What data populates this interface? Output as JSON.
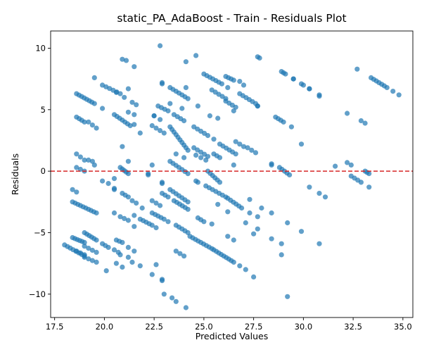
{
  "chart_data": {
    "type": "scatter",
    "title": "static_PA_AdaBoost - Train - Residuals Plot",
    "xlabel": "Predicted Values",
    "ylabel": "Residuals",
    "xlim": [
      17.3,
      35.5
    ],
    "ylim": [
      -11.9,
      11.4
    ],
    "xticks": [
      "17.5",
      "20.0",
      "22.5",
      "25.0",
      "27.5",
      "30.0",
      "32.5",
      "35.0"
    ],
    "yticks": [
      "−10",
      "−5",
      "0",
      "5",
      "10"
    ],
    "grid": false,
    "legend": "none",
    "marker_color": "#1f77b4",
    "marker_alpha": 0.7,
    "reference_line": {
      "y": 0,
      "color": "#d62728",
      "style": "dashed"
    },
    "segments": [
      {
        "x0": 18.6,
        "y0": 6.3,
        "x1": 19.5,
        "y1": 5.5,
        "n": 8
      },
      {
        "x0": 18.6,
        "y0": 4.4,
        "x1": 19.0,
        "y1": 4.0,
        "n": 4
      },
      {
        "x0": 18.6,
        "y0": 1.4,
        "x1": 19.0,
        "y1": 0.9,
        "n": 3
      },
      {
        "x0": 18.6,
        "y0": 0.3,
        "x1": 19.0,
        "y1": 0.0,
        "n": 3
      },
      {
        "x0": 18.4,
        "y0": -1.5,
        "x1": 18.6,
        "y1": -1.7,
        "n": 2
      },
      {
        "x0": 18.4,
        "y0": -2.5,
        "x1": 19.6,
        "y1": -3.4,
        "n": 10
      },
      {
        "x0": 18.0,
        "y0": -6.0,
        "x1": 19.0,
        "y1": -6.9,
        "n": 8
      },
      {
        "x0": 18.4,
        "y0": -5.4,
        "x1": 19.0,
        "y1": -5.8,
        "n": 6
      },
      {
        "x0": 18.6,
        "y0": -6.5,
        "x1": 19.0,
        "y1": -6.8,
        "n": 3
      },
      {
        "x0": 19.0,
        "y0": -5.0,
        "x1": 19.6,
        "y1": -5.6,
        "n": 6
      },
      {
        "x0": 19.0,
        "y0": -6.1,
        "x1": 19.6,
        "y1": -6.6,
        "n": 4
      },
      {
        "x0": 19.0,
        "y0": -7.0,
        "x1": 19.6,
        "y1": -7.4,
        "n": 4
      },
      {
        "x0": 19.2,
        "y0": 0.9,
        "x1": 19.4,
        "y1": 0.8,
        "n": 2
      },
      {
        "x0": 19.2,
        "y0": 4.0,
        "x1": 19.6,
        "y1": 3.5,
        "n": 3
      },
      {
        "x0": 19.5,
        "y0": 7.6,
        "x1": 19.5,
        "y1": 7.6,
        "n": 1
      },
      {
        "x0": 19.9,
        "y0": 7.0,
        "x1": 20.8,
        "y1": 6.3,
        "n": 6
      },
      {
        "x0": 19.9,
        "y0": 5.1,
        "x1": 19.9,
        "y1": 5.1,
        "n": 1
      },
      {
        "x0": 20.5,
        "y0": 4.6,
        "x1": 21.3,
        "y1": 3.7,
        "n": 7
      },
      {
        "x0": 19.9,
        "y0": -0.8,
        "x1": 20.2,
        "y1": -1.0,
        "n": 2
      },
      {
        "x0": 19.5,
        "y0": 0.5,
        "x1": 19.5,
        "y1": 0.5,
        "n": 1
      },
      {
        "x0": 20.5,
        "y0": -0.6,
        "x1": 20.5,
        "y1": -0.6,
        "n": 1
      },
      {
        "x0": 20.5,
        "y0": -1.4,
        "x1": 20.5,
        "y1": -1.5,
        "n": 2
      },
      {
        "x0": 20.8,
        "y0": 0.3,
        "x1": 21.2,
        "y1": -0.2,
        "n": 5
      },
      {
        "x0": 20.9,
        "y0": -1.8,
        "x1": 21.2,
        "y1": -2.1,
        "n": 3
      },
      {
        "x0": 20.5,
        "y0": -3.4,
        "x1": 20.5,
        "y1": -3.4,
        "n": 1
      },
      {
        "x0": 20.8,
        "y0": -3.7,
        "x1": 21.2,
        "y1": -4.0,
        "n": 3
      },
      {
        "x0": 19.9,
        "y0": -5.9,
        "x1": 20.2,
        "y1": -6.2,
        "n": 3
      },
      {
        "x0": 20.5,
        "y0": -6.4,
        "x1": 20.7,
        "y1": -6.6,
        "n": 2
      },
      {
        "x0": 20.6,
        "y0": -5.6,
        "x1": 20.9,
        "y1": -5.8,
        "n": 3
      },
      {
        "x0": 20.6,
        "y0": -7.5,
        "x1": 20.9,
        "y1": -7.8,
        "n": 2
      },
      {
        "x0": 20.8,
        "y0": -6.8,
        "x1": 21.2,
        "y1": -7.0,
        "n": 2
      },
      {
        "x0": 20.1,
        "y0": -8.1,
        "x1": 20.1,
        "y1": -8.1,
        "n": 1
      },
      {
        "x0": 20.9,
        "y0": 9.1,
        "x1": 21.1,
        "y1": 9.0,
        "n": 2
      },
      {
        "x0": 21.2,
        "y0": 6.7,
        "x1": 21.2,
        "y1": 6.7,
        "n": 1
      },
      {
        "x0": 20.6,
        "y0": 6.4,
        "x1": 20.6,
        "y1": 6.4,
        "n": 1
      },
      {
        "x0": 21.0,
        "y0": 6.0,
        "x1": 21.0,
        "y1": 6.0,
        "n": 1
      },
      {
        "x0": 21.4,
        "y0": 5.6,
        "x1": 21.6,
        "y1": 5.4,
        "n": 2
      },
      {
        "x0": 21.5,
        "y0": 8.5,
        "x1": 21.5,
        "y1": 8.5,
        "n": 1
      },
      {
        "x0": 21.2,
        "y0": 4.8,
        "x1": 21.5,
        "y1": 4.6,
        "n": 2
      },
      {
        "x0": 21.5,
        "y0": 3.8,
        "x1": 21.5,
        "y1": 3.8,
        "n": 1
      },
      {
        "x0": 20.9,
        "y0": 2.0,
        "x1": 20.9,
        "y1": 2.0,
        "n": 1
      },
      {
        "x0": 21.2,
        "y0": 0.8,
        "x1": 21.2,
        "y1": 0.8,
        "n": 1
      },
      {
        "x0": 21.4,
        "y0": -2.4,
        "x1": 21.6,
        "y1": -2.6,
        "n": 2
      },
      {
        "x0": 21.5,
        "y0": -3.6,
        "x1": 21.5,
        "y1": -3.6,
        "n": 1
      },
      {
        "x0": 21.5,
        "y0": -4.5,
        "x1": 21.5,
        "y1": -4.5,
        "n": 1
      },
      {
        "x0": 21.2,
        "y0": -6.2,
        "x1": 21.5,
        "y1": -6.5,
        "n": 2
      },
      {
        "x0": 21.4,
        "y0": -7.4,
        "x1": 21.8,
        "y1": -7.7,
        "n": 2
      },
      {
        "x0": 21.8,
        "y0": 3.1,
        "x1": 21.8,
        "y1": 3.1,
        "n": 1
      },
      {
        "x0": 21.8,
        "y0": -3.9,
        "x1": 22.4,
        "y1": -4.4,
        "n": 5
      },
      {
        "x0": 21.9,
        "y0": -3.0,
        "x1": 21.9,
        "y1": -3.0,
        "n": 1
      },
      {
        "x0": 22.2,
        "y0": -0.2,
        "x1": 22.2,
        "y1": -0.3,
        "n": 2
      },
      {
        "x0": 22.4,
        "y0": 0.5,
        "x1": 22.4,
        "y1": 0.5,
        "n": 1
      },
      {
        "x0": 22.4,
        "y0": -2.4,
        "x1": 22.8,
        "y1": -2.8,
        "n": 3
      },
      {
        "x0": 22.4,
        "y0": -3.4,
        "x1": 23.0,
        "y1": -3.9,
        "n": 5
      },
      {
        "x0": 22.5,
        "y0": 4.5,
        "x1": 22.5,
        "y1": 4.5,
        "n": 2
      },
      {
        "x0": 22.4,
        "y0": 3.7,
        "x1": 22.6,
        "y1": 3.5,
        "n": 2
      },
      {
        "x0": 22.7,
        "y0": 5.3,
        "x1": 23.2,
        "y1": 4.9,
        "n": 4
      },
      {
        "x0": 22.9,
        "y0": 7.2,
        "x1": 22.9,
        "y1": 7.1,
        "n": 2
      },
      {
        "x0": 22.8,
        "y0": 10.2,
        "x1": 22.8,
        "y1": 10.2,
        "n": 1
      },
      {
        "x0": 22.8,
        "y0": 4.2,
        "x1": 22.8,
        "y1": 4.2,
        "n": 1
      },
      {
        "x0": 22.8,
        "y0": 3.3,
        "x1": 23.0,
        "y1": 3.1,
        "n": 2
      },
      {
        "x0": 22.9,
        "y0": -0.9,
        "x1": 22.9,
        "y1": -1.0,
        "n": 2
      },
      {
        "x0": 22.9,
        "y0": -1.8,
        "x1": 23.2,
        "y1": -2.1,
        "n": 3
      },
      {
        "x0": 22.6,
        "y0": -4.6,
        "x1": 22.6,
        "y1": -4.6,
        "n": 1
      },
      {
        "x0": 22.6,
        "y0": -7.6,
        "x1": 22.6,
        "y1": -7.6,
        "n": 1
      },
      {
        "x0": 22.4,
        "y0": -8.4,
        "x1": 22.4,
        "y1": -8.4,
        "n": 1
      },
      {
        "x0": 22.9,
        "y0": -8.8,
        "x1": 22.9,
        "y1": -8.9,
        "n": 2
      },
      {
        "x0": 23.0,
        "y0": -10.0,
        "x1": 23.0,
        "y1": -10.0,
        "n": 1
      },
      {
        "x0": 23.4,
        "y0": -10.3,
        "x1": 23.6,
        "y1": -10.6,
        "n": 2
      },
      {
        "x0": 24.1,
        "y0": -11.1,
        "x1": 24.1,
        "y1": -11.1,
        "n": 1
      },
      {
        "x0": 23.3,
        "y0": 6.8,
        "x1": 24.2,
        "y1": 5.9,
        "n": 7
      },
      {
        "x0": 23.3,
        "y0": 5.5,
        "x1": 23.3,
        "y1": 5.5,
        "n": 1
      },
      {
        "x0": 23.5,
        "y0": 4.6,
        "x1": 24.0,
        "y1": 4.1,
        "n": 4
      },
      {
        "x0": 23.3,
        "y0": 3.6,
        "x1": 24.2,
        "y1": 1.7,
        "n": 10
      },
      {
        "x0": 23.3,
        "y0": 0.8,
        "x1": 24.2,
        "y1": -0.2,
        "n": 7
      },
      {
        "x0": 23.6,
        "y0": 1.4,
        "x1": 23.6,
        "y1": 1.4,
        "n": 1
      },
      {
        "x0": 23.9,
        "y0": 5.1,
        "x1": 23.9,
        "y1": 5.1,
        "n": 1
      },
      {
        "x0": 24.0,
        "y0": 1.1,
        "x1": 24.0,
        "y1": 1.1,
        "n": 1
      },
      {
        "x0": 23.3,
        "y0": -1.5,
        "x1": 24.2,
        "y1": -2.5,
        "n": 7
      },
      {
        "x0": 23.5,
        "y0": -2.4,
        "x1": 24.2,
        "y1": -3.1,
        "n": 6
      },
      {
        "x0": 23.6,
        "y0": -4.4,
        "x1": 24.2,
        "y1": -5.0,
        "n": 5
      },
      {
        "x0": 23.2,
        "y0": -4.1,
        "x1": 23.2,
        "y1": -4.1,
        "n": 1
      },
      {
        "x0": 23.6,
        "y0": -6.5,
        "x1": 24.0,
        "y1": -6.9,
        "n": 3
      },
      {
        "x0": 24.1,
        "y0": 8.9,
        "x1": 24.1,
        "y1": 8.9,
        "n": 1
      },
      {
        "x0": 24.6,
        "y0": 9.4,
        "x1": 24.6,
        "y1": 9.4,
        "n": 1
      },
      {
        "x0": 24.1,
        "y0": 6.8,
        "x1": 24.1,
        "y1": 6.8,
        "n": 1
      },
      {
        "x0": 24.5,
        "y0": 3.6,
        "x1": 25.2,
        "y1": 2.9,
        "n": 5
      },
      {
        "x0": 24.5,
        "y0": 1.9,
        "x1": 25.2,
        "y1": 1.2,
        "n": 5
      },
      {
        "x0": 24.6,
        "y0": 1.3,
        "x1": 25.1,
        "y1": 0.9,
        "n": 3
      },
      {
        "x0": 24.6,
        "y0": -0.8,
        "x1": 24.7,
        "y1": -0.9,
        "n": 2
      },
      {
        "x0": 24.3,
        "y0": -5.3,
        "x1": 25.4,
        "y1": -6.3,
        "n": 9
      },
      {
        "x0": 24.7,
        "y0": -3.8,
        "x1": 25.0,
        "y1": -4.1,
        "n": 3
      },
      {
        "x0": 24.7,
        "y0": 5.3,
        "x1": 24.7,
        "y1": 5.3,
        "n": 1
      },
      {
        "x0": 25.0,
        "y0": 7.9,
        "x1": 25.9,
        "y1": 7.1,
        "n": 7
      },
      {
        "x0": 25.4,
        "y0": 6.6,
        "x1": 26.1,
        "y1": 5.9,
        "n": 5
      },
      {
        "x0": 25.3,
        "y0": 4.5,
        "x1": 25.3,
        "y1": 4.5,
        "n": 1
      },
      {
        "x0": 25.7,
        "y0": 4.3,
        "x1": 25.7,
        "y1": 4.3,
        "n": 1
      },
      {
        "x0": 25.2,
        "y0": 0.0,
        "x1": 25.8,
        "y1": -0.9,
        "n": 6
      },
      {
        "x0": 25.1,
        "y0": -1.2,
        "x1": 26.1,
        "y1": -2.1,
        "n": 7
      },
      {
        "x0": 25.5,
        "y0": 1.4,
        "x1": 25.8,
        "y1": 1.1,
        "n": 3
      },
      {
        "x0": 25.5,
        "y0": 2.6,
        "x1": 25.5,
        "y1": 2.6,
        "n": 1
      },
      {
        "x0": 25.4,
        "y0": -4.3,
        "x1": 25.4,
        "y1": -4.3,
        "n": 1
      },
      {
        "x0": 25.7,
        "y0": -2.7,
        "x1": 25.7,
        "y1": -2.7,
        "n": 1
      },
      {
        "x0": 25.5,
        "y0": -6.4,
        "x1": 26.5,
        "y1": -7.4,
        "n": 9
      },
      {
        "x0": 25.8,
        "y0": 2.2,
        "x1": 26.6,
        "y1": 1.4,
        "n": 6
      },
      {
        "x0": 26.1,
        "y0": 7.7,
        "x1": 26.5,
        "y1": 7.4,
        "n": 4
      },
      {
        "x0": 26.2,
        "y0": 6.8,
        "x1": 26.2,
        "y1": 6.8,
        "n": 1
      },
      {
        "x0": 26.1,
        "y0": 5.7,
        "x1": 26.6,
        "y1": 5.2,
        "n": 4
      },
      {
        "x0": 26.5,
        "y0": 4.9,
        "x1": 26.5,
        "y1": 4.9,
        "n": 1
      },
      {
        "x0": 26.5,
        "y0": 0.5,
        "x1": 26.5,
        "y1": 0.5,
        "n": 1
      },
      {
        "x0": 26.2,
        "y0": -2.2,
        "x1": 26.9,
        "y1": -3.0,
        "n": 6
      },
      {
        "x0": 26.2,
        "y0": -3.3,
        "x1": 26.2,
        "y1": -3.3,
        "n": 1
      },
      {
        "x0": 26.2,
        "y0": -5.3,
        "x1": 26.5,
        "y1": -5.6,
        "n": 2
      },
      {
        "x0": 26.6,
        "y0": 2.4,
        "x1": 27.0,
        "y1": 2.0,
        "n": 3
      },
      {
        "x0": 26.8,
        "y0": 7.3,
        "x1": 27.0,
        "y1": 7.0,
        "n": 2
      },
      {
        "x0": 26.8,
        "y0": 6.3,
        "x1": 27.6,
        "y1": 5.5,
        "n": 6
      },
      {
        "x0": 27.2,
        "y0": 1.9,
        "x1": 27.6,
        "y1": 1.5,
        "n": 3
      },
      {
        "x0": 26.8,
        "y0": -7.7,
        "x1": 27.1,
        "y1": -8.0,
        "n": 2
      },
      {
        "x0": 27.1,
        "y0": -4.2,
        "x1": 27.1,
        "y1": -4.2,
        "n": 1
      },
      {
        "x0": 27.3,
        "y0": -2.3,
        "x1": 27.3,
        "y1": -2.3,
        "n": 1
      },
      {
        "x0": 27.3,
        "y0": -3.4,
        "x1": 27.3,
        "y1": -3.4,
        "n": 1
      },
      {
        "x0": 27.5,
        "y0": -5.1,
        "x1": 27.5,
        "y1": -5.1,
        "n": 1
      },
      {
        "x0": 27.5,
        "y0": -8.6,
        "x1": 27.5,
        "y1": -8.6,
        "n": 1
      },
      {
        "x0": 27.7,
        "y0": 9.3,
        "x1": 27.8,
        "y1": 9.2,
        "n": 2
      },
      {
        "x0": 27.7,
        "y0": 5.3,
        "x1": 27.7,
        "y1": 5.3,
        "n": 2
      },
      {
        "x0": 27.7,
        "y0": -3.7,
        "x1": 27.7,
        "y1": -3.7,
        "n": 1
      },
      {
        "x0": 27.7,
        "y0": -4.7,
        "x1": 27.7,
        "y1": -4.7,
        "n": 1
      },
      {
        "x0": 27.9,
        "y0": -3.0,
        "x1": 27.9,
        "y1": -3.0,
        "n": 1
      },
      {
        "x0": 28.4,
        "y0": 0.6,
        "x1": 28.4,
        "y1": 0.5,
        "n": 2
      },
      {
        "x0": 28.4,
        "y0": -3.4,
        "x1": 28.4,
        "y1": -3.4,
        "n": 1
      },
      {
        "x0": 28.4,
        "y0": -5.5,
        "x1": 28.4,
        "y1": -5.5,
        "n": 1
      },
      {
        "x0": 28.6,
        "y0": 4.4,
        "x1": 29.0,
        "y1": 4.0,
        "n": 4
      },
      {
        "x0": 28.8,
        "y0": 0.3,
        "x1": 29.3,
        "y1": -0.3,
        "n": 5
      },
      {
        "x0": 28.9,
        "y0": 8.1,
        "x1": 29.1,
        "y1": 7.9,
        "n": 3
      },
      {
        "x0": 28.9,
        "y0": -5.9,
        "x1": 28.9,
        "y1": -5.9,
        "n": 1
      },
      {
        "x0": 28.9,
        "y0": -6.8,
        "x1": 28.9,
        "y1": -6.8,
        "n": 1
      },
      {
        "x0": 29.2,
        "y0": -4.2,
        "x1": 29.2,
        "y1": -4.2,
        "n": 1
      },
      {
        "x0": 29.2,
        "y0": -10.2,
        "x1": 29.2,
        "y1": -10.2,
        "n": 1
      },
      {
        "x0": 29.5,
        "y0": 7.5,
        "x1": 29.5,
        "y1": 7.5,
        "n": 2
      },
      {
        "x0": 29.4,
        "y0": 3.6,
        "x1": 29.4,
        "y1": 3.6,
        "n": 1
      },
      {
        "x0": 29.9,
        "y0": 7.1,
        "x1": 30.0,
        "y1": 7.0,
        "n": 2
      },
      {
        "x0": 29.9,
        "y0": 2.2,
        "x1": 29.9,
        "y1": 2.2,
        "n": 1
      },
      {
        "x0": 29.9,
        "y0": -4.9,
        "x1": 29.9,
        "y1": -4.9,
        "n": 1
      },
      {
        "x0": 30.3,
        "y0": 6.7,
        "x1": 30.3,
        "y1": 6.7,
        "n": 2
      },
      {
        "x0": 30.3,
        "y0": -1.3,
        "x1": 30.3,
        "y1": -1.3,
        "n": 1
      },
      {
        "x0": 30.8,
        "y0": 6.2,
        "x1": 30.8,
        "y1": 6.1,
        "n": 2
      },
      {
        "x0": 30.8,
        "y0": -1.8,
        "x1": 31.1,
        "y1": -2.1,
        "n": 2
      },
      {
        "x0": 30.8,
        "y0": -5.9,
        "x1": 30.8,
        "y1": -5.9,
        "n": 1
      },
      {
        "x0": 31.6,
        "y0": 0.4,
        "x1": 31.6,
        "y1": 0.4,
        "n": 1
      },
      {
        "x0": 32.2,
        "y0": 4.7,
        "x1": 32.2,
        "y1": 4.7,
        "n": 1
      },
      {
        "x0": 32.2,
        "y0": 0.7,
        "x1": 32.4,
        "y1": 0.5,
        "n": 2
      },
      {
        "x0": 32.4,
        "y0": -0.4,
        "x1": 32.9,
        "y1": -0.9,
        "n": 4
      },
      {
        "x0": 32.7,
        "y0": 8.3,
        "x1": 32.7,
        "y1": 8.3,
        "n": 1
      },
      {
        "x0": 32.9,
        "y0": 4.1,
        "x1": 33.1,
        "y1": 3.9,
        "n": 2
      },
      {
        "x0": 33.1,
        "y0": 0.0,
        "x1": 33.3,
        "y1": -0.2,
        "n": 3
      },
      {
        "x0": 33.3,
        "y0": -1.3,
        "x1": 33.3,
        "y1": -1.3,
        "n": 1
      },
      {
        "x0": 33.4,
        "y0": 7.6,
        "x1": 34.2,
        "y1": 6.8,
        "n": 7
      },
      {
        "x0": 34.5,
        "y0": 6.5,
        "x1": 34.8,
        "y1": 6.2,
        "n": 2
      }
    ]
  }
}
